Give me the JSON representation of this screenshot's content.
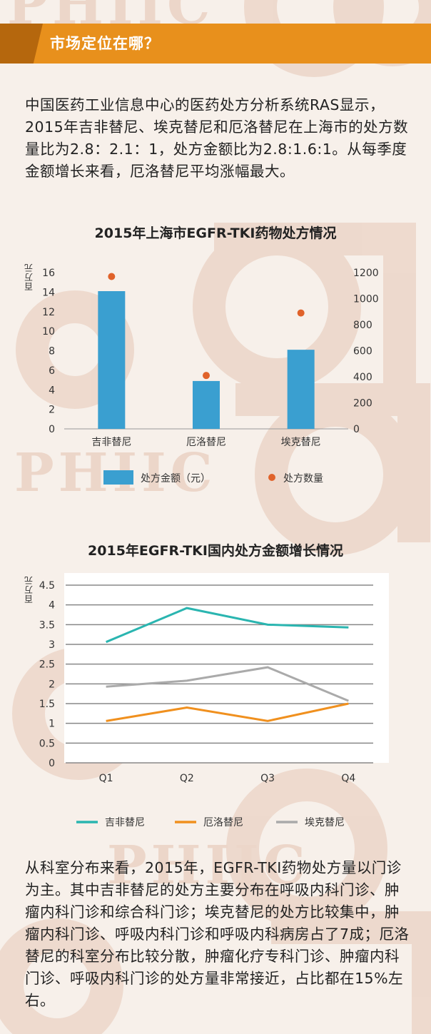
{
  "watermark": {
    "text": "PHIIC"
  },
  "header": {
    "title": "市场定位在哪？"
  },
  "intro": {
    "text": "中国医药工业信息中心的医药处方分析系统RAS显示，2015年吉非替尼、埃克替尼和厄洛替尼在上海市的处方数量比为2.8：2.1：1，处方金额比为2.8:1.6:1。从每季度金额增长来看，厄洛替尼平均涨幅最大。"
  },
  "chart_data": [
    {
      "type": "bar",
      "title": "2015年上海市EGFR-TKI药物处方情况",
      "ylabel": "百万元",
      "categories": [
        "吉非替尼",
        "厄洛替尼",
        "埃克替尼"
      ],
      "series": [
        {
          "name": "处方金额（元）",
          "values": [
            14.1,
            4.9,
            8.1
          ],
          "axis": "left",
          "color": "#3a9fd0",
          "mark": "bar"
        },
        {
          "name": "处方数量",
          "values": [
            1170,
            410,
            890
          ],
          "axis": "right",
          "color": "#e0622a",
          "mark": "dot"
        }
      ],
      "y_left": {
        "ylim": [
          0,
          16
        ],
        "ticks": [
          0,
          2,
          4,
          6,
          8,
          10,
          12,
          14,
          16
        ]
      },
      "y_right": {
        "ylim": [
          0,
          1200
        ],
        "ticks": [
          0,
          200,
          400,
          600,
          800,
          1000,
          1200
        ]
      },
      "legend_position": "bottom"
    },
    {
      "type": "line",
      "title": "2015年EGFR-TKI国内处方金额增长情况",
      "ylabel": "百万元",
      "categories": [
        "Q1",
        "Q2",
        "Q3",
        "Q4"
      ],
      "series": [
        {
          "name": "吉非替尼",
          "values": [
            3.06,
            3.92,
            3.5,
            3.43
          ],
          "color": "#2ab5b0"
        },
        {
          "name": "厄洛替尼",
          "values": [
            1.06,
            1.4,
            1.06,
            1.5
          ],
          "color": "#f0901e"
        },
        {
          "name": "埃克替尼",
          "values": [
            1.93,
            2.08,
            2.42,
            1.57
          ],
          "color": "#aaaaaa"
        }
      ],
      "ylim": [
        0,
        4.5
      ],
      "ticks": [
        0,
        0.5,
        1,
        1.5,
        2,
        2.5,
        3,
        3.5,
        4,
        4.5
      ],
      "grid": true,
      "legend_position": "bottom"
    }
  ],
  "outro": {
    "text": "从科室分布来看，2015年，EGFR-TKI药物处方量以门诊为主。其中吉非替尼的处方主要分布在呼吸内科门诊、肿瘤内科门诊和综合科门诊；埃克替尼的处方比较集中，肿瘤内科门诊、呼吸内科门诊和呼吸内科病房占了7成；厄洛替尼的科室分布比较分散，肿瘤化疗专科门诊、肿瘤内科门诊、呼吸内科门诊的处方量非常接近，占比都在15%左右。"
  }
}
